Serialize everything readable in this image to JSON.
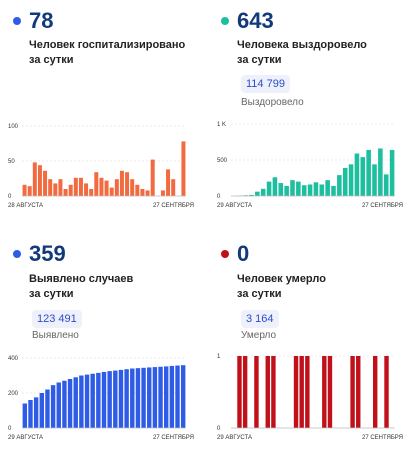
{
  "panels": [
    {
      "value": "78",
      "label_line1": "Человек госпитализировано",
      "label_line2": "за сутки",
      "color": "#2f5ce6",
      "chip": "",
      "sub": ""
    },
    {
      "value": "643",
      "label_line1": "Человека выздоровело",
      "label_line2": "за сутки",
      "color": "#1dbf9f",
      "chip": "114 799",
      "sub": "Выздоровело"
    },
    {
      "value": "359",
      "label_line1": "Выявлено случаев",
      "label_line2": "за сутки",
      "color": "#2f5ce6",
      "chip": "123 491",
      "sub": "Выявлено"
    },
    {
      "value": "0",
      "label_line1": "Человек умерло",
      "label_line2": "за сутки",
      "color": "#c0111a",
      "chip": "3 164",
      "sub": "Умерло"
    }
  ],
  "chart_data": [
    {
      "type": "bar",
      "color": "#f26a3f",
      "x_start_label": "28 АВГУСТА",
      "x_end_label": "27 СЕНТЯБРЯ",
      "y_ticks": [
        "100",
        "50",
        "0"
      ],
      "ylim": [
        0,
        100
      ],
      "values": [
        16,
        14,
        48,
        44,
        36,
        24,
        18,
        24,
        10,
        16,
        26,
        26,
        18,
        10,
        34,
        26,
        22,
        12,
        24,
        36,
        34,
        24,
        16,
        10,
        8,
        52,
        0,
        8,
        38,
        24,
        0,
        78
      ]
    },
    {
      "type": "bar",
      "color": "#1dbf9f",
      "x_start_label": "29 АВГУСТА",
      "x_end_label": "27 СЕНТЯБРЯ",
      "y_ticks": [
        "1 K",
        "500",
        "0"
      ],
      "ylim": [
        0,
        1000
      ],
      "values": [
        0,
        5,
        10,
        15,
        60,
        100,
        200,
        260,
        180,
        140,
        220,
        200,
        150,
        160,
        190,
        160,
        220,
        140,
        290,
        390,
        440,
        590,
        540,
        640,
        440,
        660,
        300,
        640
      ]
    },
    {
      "type": "bar",
      "color": "#2f5ce6",
      "x_start_label": "29 АВГУСТА",
      "x_end_label": "27 СЕНТЯБРЯ",
      "y_ticks": [
        "400",
        "200",
        "0"
      ],
      "ylim": [
        0,
        400
      ],
      "values": [
        140,
        160,
        175,
        200,
        220,
        245,
        260,
        270,
        280,
        290,
        300,
        305,
        310,
        315,
        320,
        325,
        328,
        332,
        336,
        340,
        342,
        344,
        346,
        348,
        350,
        352,
        355,
        357,
        359
      ]
    },
    {
      "type": "bar",
      "color": "#c0111a",
      "x_start_label": "29 АВГУСТА",
      "x_end_label": "27 СЕНТЯБРЯ",
      "y_ticks": [
        "1",
        "0"
      ],
      "ylim": [
        0,
        1
      ],
      "values": [
        0,
        1,
        1,
        0,
        1,
        0,
        1,
        1,
        0,
        0,
        0,
        1,
        1,
        1,
        0,
        0,
        1,
        1,
        0,
        0,
        0,
        1,
        1,
        0,
        0,
        1,
        0,
        1,
        0
      ]
    }
  ]
}
